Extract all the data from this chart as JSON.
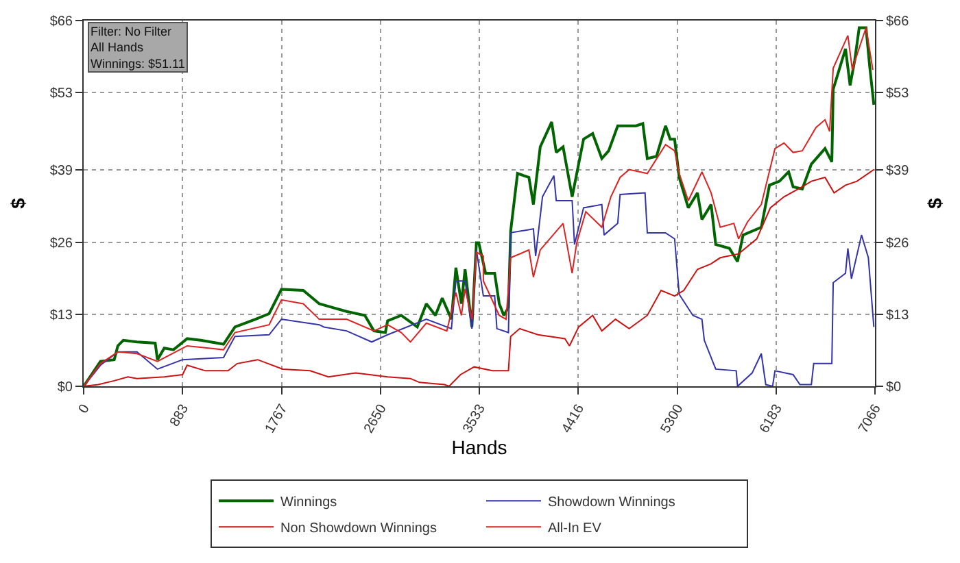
{
  "chart_data": {
    "type": "line",
    "xlabel": "Hands",
    "ylabel": "$",
    "y2label": "$",
    "annotations": [
      "Filter: No Filter\nAll Hands\nWinnings: $51.11"
    ],
    "xlim": [
      0,
      7066
    ],
    "xticks": [
      0,
      883,
      1767,
      2650,
      3533,
      4416,
      5300,
      6183,
      7066
    ],
    "ylim": [
      0,
      66
    ],
    "yticks": [
      {
        "value": 0,
        "label": "$0"
      },
      {
        "value": 13,
        "label": "$13"
      },
      {
        "value": 26,
        "label": "$26"
      },
      {
        "value": 39,
        "label": "$39"
      },
      {
        "value": 53,
        "label": "$53"
      },
      {
        "value": 66,
        "label": "$66"
      }
    ],
    "y2lim": [
      0,
      66
    ],
    "y2ticks": [
      {
        "value": 0,
        "label": "$0"
      },
      {
        "value": 13,
        "label": "$13"
      },
      {
        "value": 26,
        "label": "$26"
      },
      {
        "value": 39,
        "label": "$39"
      },
      {
        "value": 53,
        "label": "$53"
      },
      {
        "value": 66,
        "label": "$66"
      }
    ],
    "grid": true,
    "legend": "bottom",
    "marker": "none",
    "line_style": "solid",
    "series": [
      {
        "name": "Winnings",
        "color": "#006400",
        "x": [
          0,
          150,
          273,
          305,
          354,
          476,
          639,
          659,
          720,
          802,
          924,
          1046,
          1249,
          1351,
          1534,
          1656,
          1766,
          1961,
          2104,
          2226,
          2348,
          2511,
          2592,
          2694,
          2714,
          2836,
          2979,
          3060,
          3141,
          3202,
          3284,
          3324,
          3373,
          3406,
          3467,
          3507,
          3528,
          3589,
          3670,
          3711,
          3752,
          3793,
          3813,
          3874,
          3976,
          4016,
          4077,
          4179,
          4220,
          4281,
          4362,
          4464,
          4545,
          4627,
          4688,
          4769,
          4932,
          4993,
          5033,
          5115,
          5196,
          5237,
          5277,
          5318,
          5399,
          5481,
          5521,
          5603,
          5644,
          5766,
          5839,
          5888,
          6051,
          6124,
          6213,
          6295,
          6335,
          6417,
          6498,
          6620,
          6681,
          6693,
          6803,
          6844,
          6885,
          6925,
          6986,
          7019,
          7056
        ],
        "values": [
          0,
          4.5,
          4.8,
          7.3,
          8.3,
          8.0,
          7.8,
          4.8,
          6.9,
          6.6,
          8.6,
          8.3,
          7.6,
          10.7,
          12.1,
          13.1,
          17.5,
          17.3,
          14.9,
          14.2,
          13.5,
          12.8,
          10.0,
          9.7,
          11.8,
          12.8,
          10.7,
          14.9,
          12.8,
          15.9,
          12.1,
          21.4,
          14.9,
          21.1,
          10.7,
          25.9,
          25.9,
          20.4,
          20.4,
          14.9,
          12.8,
          14.2,
          28.0,
          38.4,
          37.7,
          32.8,
          43.2,
          47.7,
          42.2,
          43.2,
          34.2,
          44.6,
          45.6,
          41.1,
          42.5,
          47.0,
          47.0,
          47.4,
          41.1,
          41.5,
          47.0,
          44.6,
          44.6,
          37.7,
          32.2,
          34.9,
          30.1,
          32.8,
          25.6,
          24.9,
          22.5,
          27.3,
          28.7,
          36.3,
          37.0,
          38.7,
          36.0,
          35.6,
          40.1,
          42.9,
          40.5,
          53.6,
          60.9,
          54.3,
          58.8,
          64.7,
          64.7,
          57.7,
          50.8
        ]
      },
      {
        "name": "Showdown Winnings",
        "color": "#3333aa",
        "x": [
          0,
          150,
          305,
          476,
          659,
          883,
          1249,
          1351,
          1656,
          1766,
          2104,
          2145,
          2348,
          2572,
          2714,
          3060,
          3284,
          3324,
          3406,
          3467,
          3507,
          3569,
          3670,
          3690,
          3793,
          3813,
          4016,
          4036,
          4097,
          4199,
          4220,
          4362,
          4383,
          4464,
          4627,
          4647,
          4769,
          4790,
          5013,
          5033,
          5196,
          5277,
          5318,
          5440,
          5521,
          5542,
          5644,
          5827,
          5839,
          5969,
          6051,
          6091,
          6152,
          6173,
          6335,
          6396,
          6498,
          6519,
          6681,
          6693,
          6803,
          6824,
          6856,
          6946,
          7007,
          7056
        ],
        "values": [
          0,
          3.8,
          6.2,
          6.2,
          3.1,
          4.8,
          5.2,
          9.0,
          9.3,
          12.1,
          11.1,
          10.7,
          10.0,
          8.0,
          9.3,
          12.1,
          10.4,
          19.0,
          19.0,
          10.4,
          24.6,
          16.3,
          16.3,
          10.4,
          9.7,
          27.7,
          28.4,
          23.5,
          34.2,
          38.0,
          33.5,
          33.5,
          25.6,
          32.2,
          32.8,
          27.3,
          29.4,
          34.6,
          34.9,
          27.7,
          27.7,
          26.6,
          16.6,
          12.8,
          12.1,
          8.3,
          3.1,
          2.8,
          0,
          2.4,
          5.9,
          0.3,
          0,
          2.8,
          2.1,
          0.3,
          0.3,
          4.1,
          4.1,
          18.7,
          20.4,
          24.9,
          19.4,
          27.3,
          23.2,
          10.7
        ]
      },
      {
        "name": "Non Showdown Winnings",
        "color": "#cc1111",
        "x": [
          0,
          130,
          273,
          395,
          476,
          720,
          883,
          924,
          1087,
          1290,
          1371,
          1554,
          1778,
          2022,
          2185,
          2429,
          2714,
          2918,
          2999,
          3222,
          3263,
          3365,
          3487,
          3650,
          3731,
          3793,
          3813,
          3894,
          4057,
          4297,
          4338,
          4420,
          4545,
          4627,
          4749,
          4871,
          5033,
          5156,
          5277,
          5359,
          5481,
          5603,
          5684,
          5848,
          6010,
          6132,
          6254,
          6417,
          6498,
          6620,
          6701,
          6803,
          6905,
          7056
        ],
        "values": [
          0,
          0.3,
          1.0,
          1.7,
          1.4,
          1.7,
          2.1,
          3.8,
          2.8,
          2.8,
          4.1,
          4.8,
          3.1,
          2.8,
          1.7,
          2.4,
          1.7,
          1.4,
          0.7,
          0.3,
          0,
          2.1,
          3.5,
          2.8,
          2.8,
          2.8,
          9.0,
          10.4,
          9.3,
          8.6,
          7.3,
          10.7,
          12.8,
          10.0,
          12.1,
          10.4,
          12.8,
          17.3,
          16.3,
          17.3,
          21.1,
          22.1,
          23.2,
          23.9,
          26.6,
          32.2,
          34.2,
          36.0,
          37.0,
          37.7,
          34.9,
          36.3,
          37.0,
          39.1
        ]
      },
      {
        "name": "All-In EV",
        "color": "#dd2222",
        "x": [
          0,
          150,
          305,
          476,
          659,
          924,
          1249,
          1351,
          1656,
          1766,
          1961,
          2104,
          2348,
          2592,
          2714,
          2836,
          2918,
          3060,
          3243,
          3324,
          3373,
          3406,
          3467,
          3507,
          3569,
          3569,
          3711,
          3772,
          3813,
          3976,
          4016,
          4077,
          4281,
          4362,
          4403,
          4484,
          4627,
          4708,
          4790,
          4871,
          5033,
          5196,
          5277,
          5318,
          5399,
          5521,
          5603,
          5684,
          5806,
          5848,
          5929,
          6051,
          6173,
          6254,
          6335,
          6417,
          6539,
          6620,
          6661,
          6693,
          6824,
          6864,
          6905,
          6986,
          7047
        ],
        "values": [
          0,
          4.1,
          6.2,
          5.9,
          4.5,
          7.3,
          6.6,
          9.7,
          11.1,
          15.6,
          14.9,
          12.1,
          12.1,
          10.0,
          11.1,
          9.7,
          8.0,
          11.4,
          10.0,
          16.9,
          12.8,
          17.6,
          12.1,
          24.2,
          23.5,
          19.0,
          12.8,
          12.1,
          23.2,
          24.6,
          19.7,
          24.6,
          29.4,
          20.4,
          25.9,
          31.5,
          28.7,
          34.2,
          37.7,
          39.1,
          38.4,
          43.6,
          42.5,
          38.4,
          33.5,
          38.7,
          34.9,
          28.7,
          29.4,
          26.6,
          29.7,
          32.8,
          42.9,
          43.9,
          42.2,
          42.5,
          46.7,
          48.1,
          46.0,
          57.4,
          63.3,
          57.1,
          59.8,
          64.7,
          57.1
        ]
      }
    ]
  }
}
